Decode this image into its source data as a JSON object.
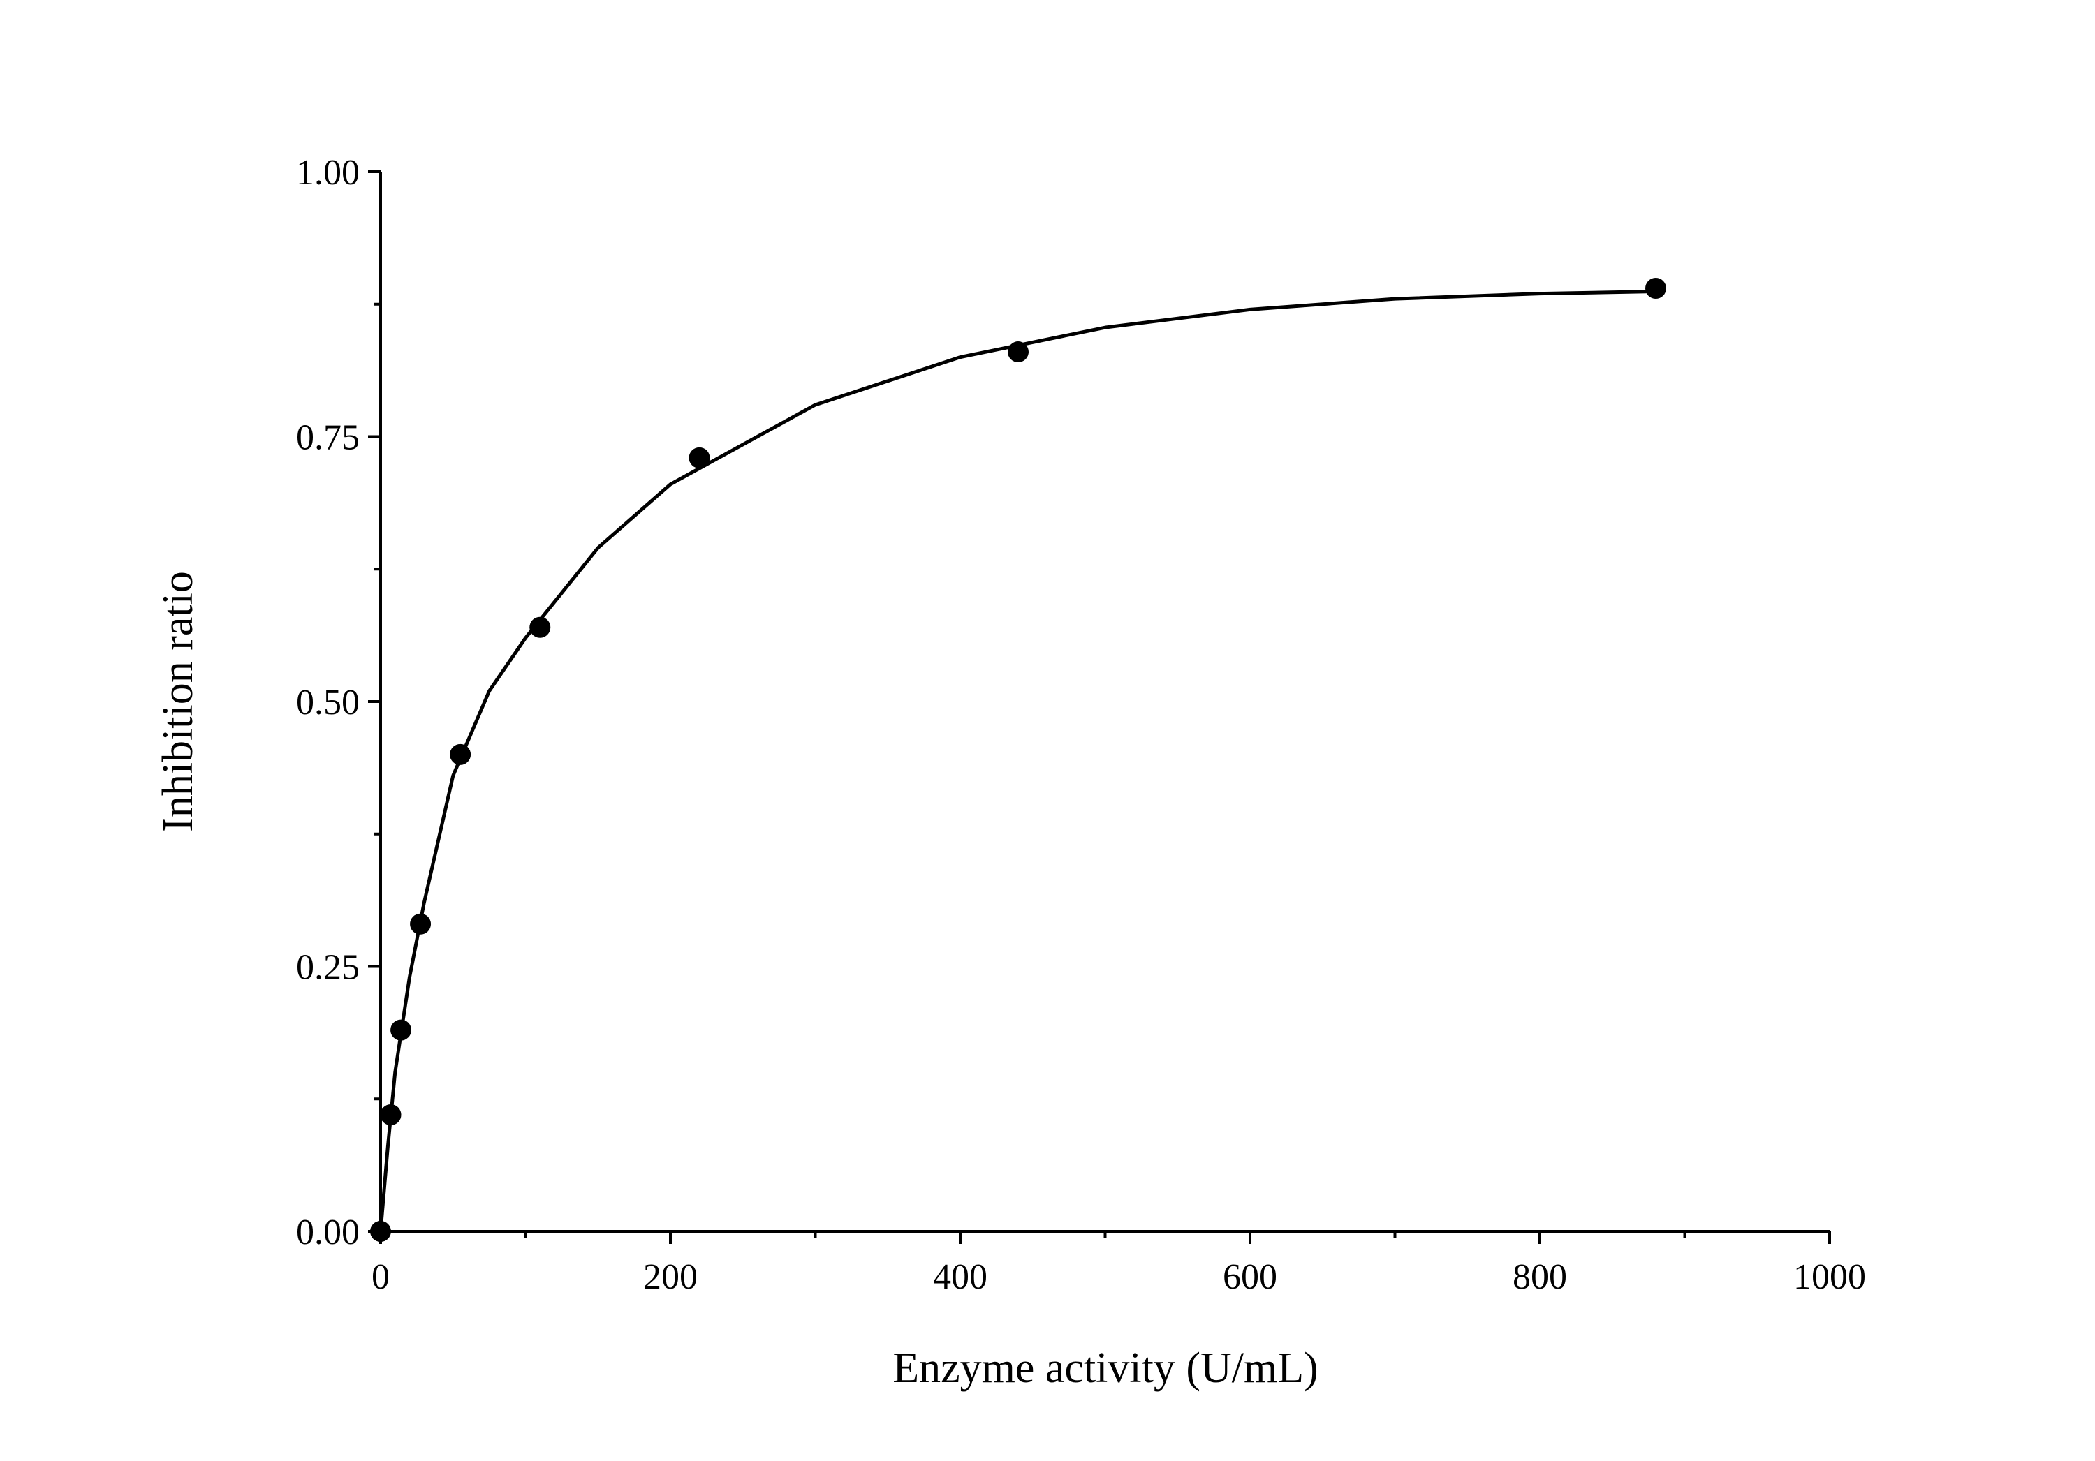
{
  "chart_data": {
    "type": "scatter",
    "x_label": "Enzyme activity (U/mL)",
    "y_label": "Inhibition ratio",
    "xlim": [
      0,
      1000
    ],
    "ylim": [
      0,
      1
    ],
    "xticks": [
      0,
      200,
      400,
      600,
      800,
      1000
    ],
    "xminor": [
      100,
      300,
      500,
      700,
      900
    ],
    "yticks": [
      {
        "value": 0,
        "label": "0.00"
      },
      {
        "value": 0.25,
        "label": "0.25"
      },
      {
        "value": 0.5,
        "label": "0.50"
      },
      {
        "value": 0.75,
        "label": "0.75"
      },
      {
        "value": 1,
        "label": "1.00"
      }
    ],
    "yminor": [
      0.125,
      0.375,
      0.625,
      0.875
    ],
    "color": "#000000",
    "points": {
      "x": [
        0,
        7,
        14,
        27.5,
        55,
        110,
        220,
        440,
        880
      ],
      "values": [
        0,
        0.11,
        0.19,
        0.29,
        0.45,
        0.57,
        0.73,
        0.83,
        0.89
      ]
    },
    "fit": {
      "x": [
        0,
        5,
        10,
        20,
        30,
        50,
        75,
        100,
        150,
        200,
        300,
        400,
        500,
        600,
        700,
        800,
        880
      ],
      "values": [
        0,
        0.08,
        0.15,
        0.24,
        0.31,
        0.43,
        0.51,
        0.56,
        0.645,
        0.705,
        0.78,
        0.825,
        0.853,
        0.87,
        0.88,
        0.885,
        0.887
      ]
    }
  }
}
